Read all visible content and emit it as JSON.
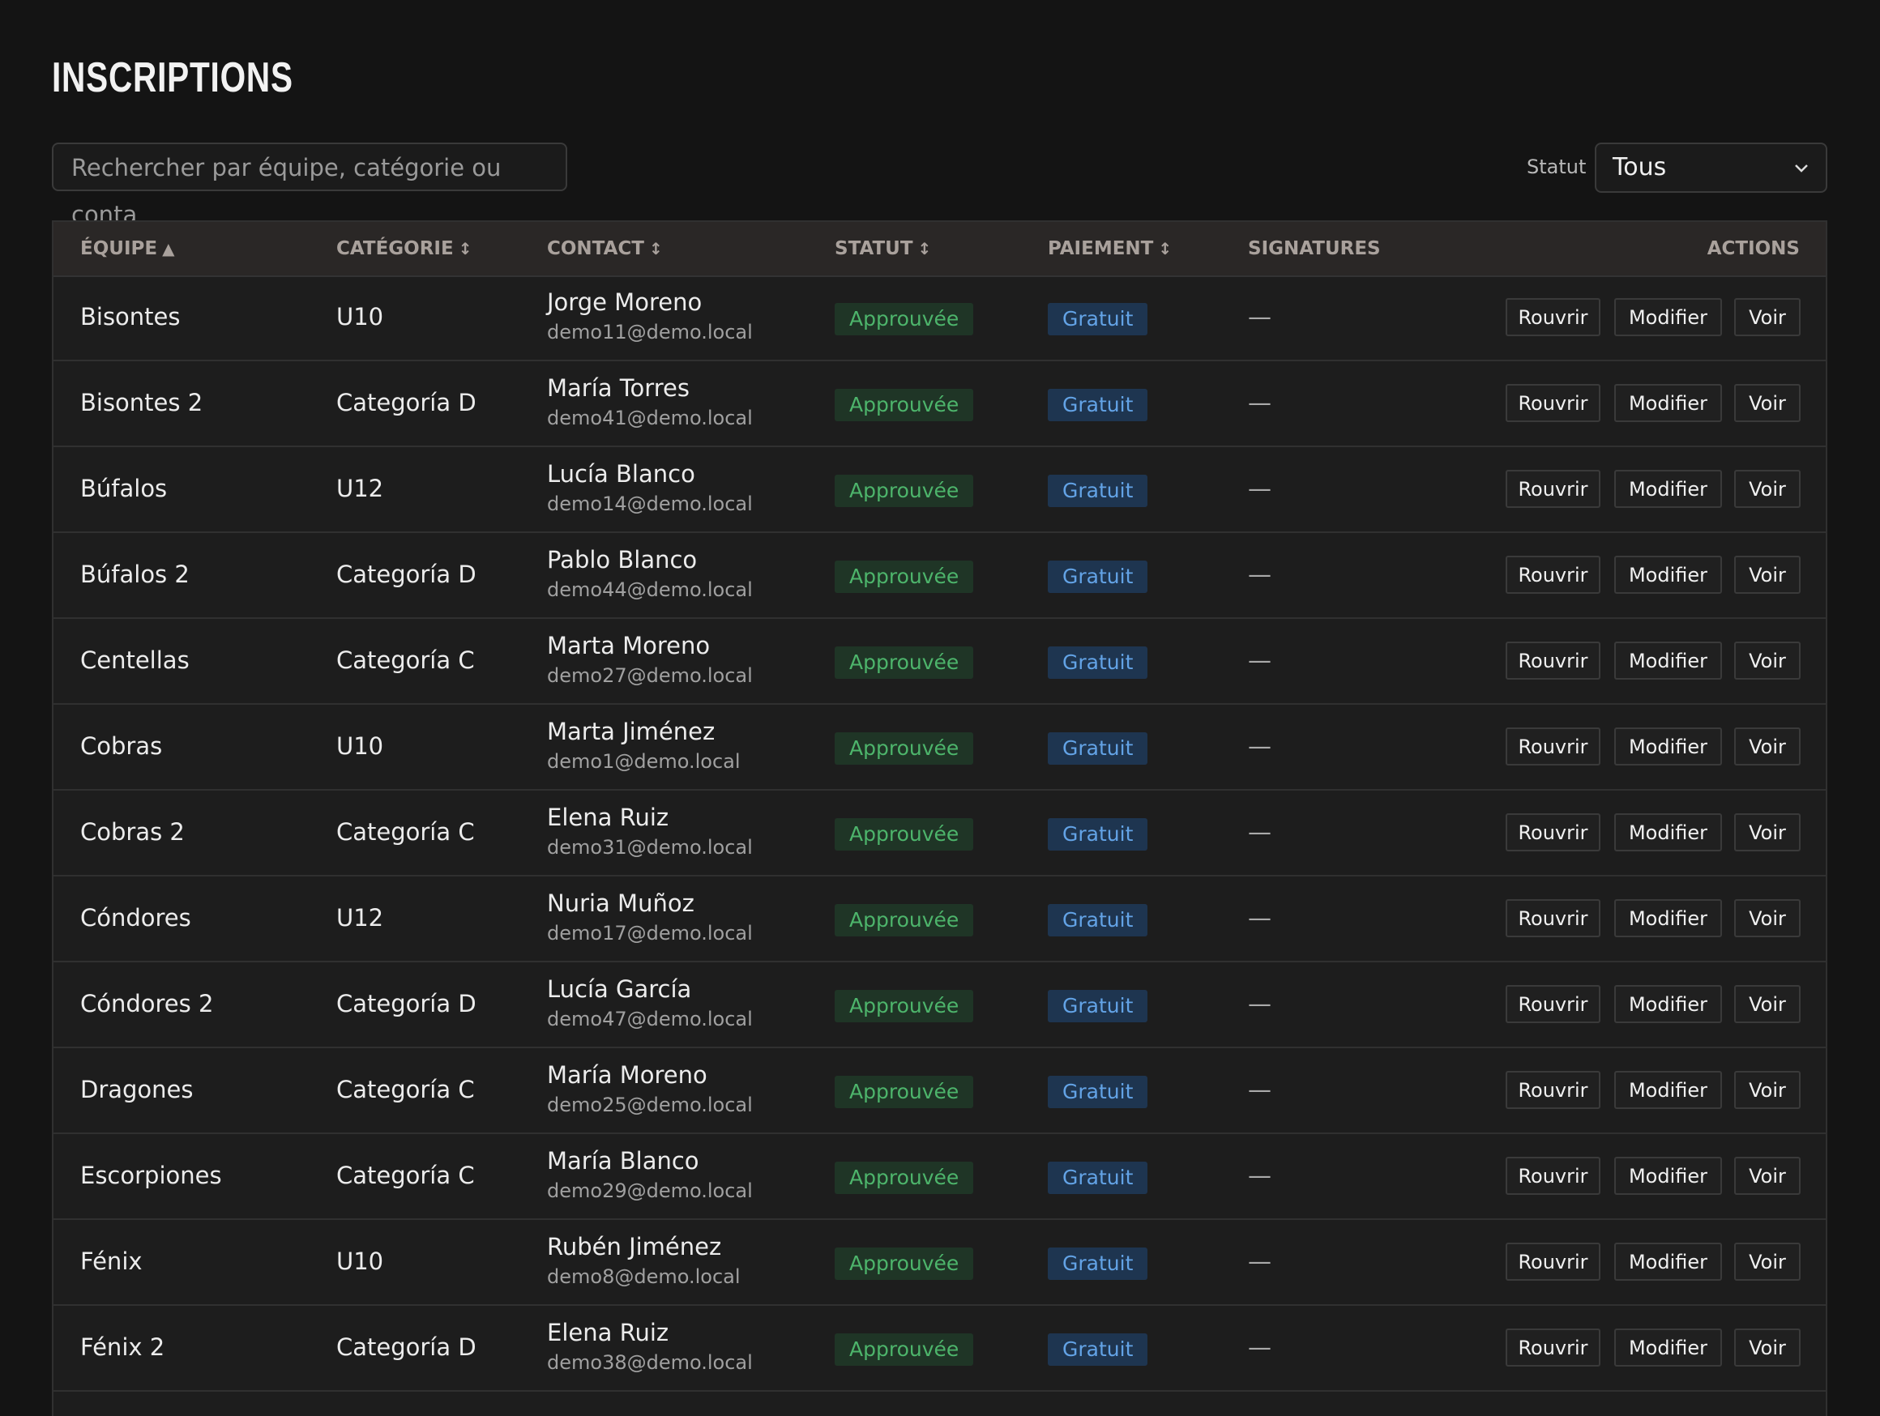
{
  "header": {
    "title": "INSCRIPTIONS"
  },
  "search": {
    "placeholder": "Rechercher par équipe, catégorie ou conta"
  },
  "filter": {
    "label": "Statut",
    "value": "Tous"
  },
  "table": {
    "columns": [
      {
        "label": "ÉQUIPE",
        "sort": "▲"
      },
      {
        "label": "CATÉGORIE",
        "sort": "↕"
      },
      {
        "label": "CONTACT",
        "sort": "↕"
      },
      {
        "label": "STATUT",
        "sort": "↕"
      },
      {
        "label": "PAIEMENT",
        "sort": "↕"
      },
      {
        "label": "SIGNATURES"
      },
      {
        "label": "ACTIONS"
      }
    ],
    "actions": [
      "Rouvrir",
      "Modifier",
      "Voir"
    ],
    "rows": [
      {
        "team": "Bisontes",
        "category": "U10",
        "contact": "Jorge Moreno",
        "email": "demo11@demo.local",
        "status": "Approuvée",
        "payment": "Gratuit",
        "signatures": "—"
      },
      {
        "team": "Bisontes 2",
        "category": "Categoría D",
        "contact": "María Torres",
        "email": "demo41@demo.local",
        "status": "Approuvée",
        "payment": "Gratuit",
        "signatures": "—"
      },
      {
        "team": "Búfalos",
        "category": "U12",
        "contact": "Lucía Blanco",
        "email": "demo14@demo.local",
        "status": "Approuvée",
        "payment": "Gratuit",
        "signatures": "—"
      },
      {
        "team": "Búfalos 2",
        "category": "Categoría D",
        "contact": "Pablo Blanco",
        "email": "demo44@demo.local",
        "status": "Approuvée",
        "payment": "Gratuit",
        "signatures": "—"
      },
      {
        "team": "Centellas",
        "category": "Categoría C",
        "contact": "Marta Moreno",
        "email": "demo27@demo.local",
        "status": "Approuvée",
        "payment": "Gratuit",
        "signatures": "—"
      },
      {
        "team": "Cobras",
        "category": "U10",
        "contact": "Marta Jiménez",
        "email": "demo1@demo.local",
        "status": "Approuvée",
        "payment": "Gratuit",
        "signatures": "—"
      },
      {
        "team": "Cobras 2",
        "category": "Categoría C",
        "contact": "Elena Ruiz",
        "email": "demo31@demo.local",
        "status": "Approuvée",
        "payment": "Gratuit",
        "signatures": "—"
      },
      {
        "team": "Cóndores",
        "category": "U12",
        "contact": "Nuria Muñoz",
        "email": "demo17@demo.local",
        "status": "Approuvée",
        "payment": "Gratuit",
        "signatures": "—"
      },
      {
        "team": "Cóndores 2",
        "category": "Categoría D",
        "contact": "Lucía García",
        "email": "demo47@demo.local",
        "status": "Approuvée",
        "payment": "Gratuit",
        "signatures": "—"
      },
      {
        "team": "Dragones",
        "category": "Categoría C",
        "contact": "María Moreno",
        "email": "demo25@demo.local",
        "status": "Approuvée",
        "payment": "Gratuit",
        "signatures": "—"
      },
      {
        "team": "Escorpiones",
        "category": "Categoría C",
        "contact": "María Blanco",
        "email": "demo29@demo.local",
        "status": "Approuvée",
        "payment": "Gratuit",
        "signatures": "—"
      },
      {
        "team": "Fénix",
        "category": "U10",
        "contact": "Rubén Jiménez",
        "email": "demo8@demo.local",
        "status": "Approuvée",
        "payment": "Gratuit",
        "signatures": "—"
      },
      {
        "team": "Fénix 2",
        "category": "Categoría D",
        "contact": "Elena Ruiz",
        "email": "demo38@demo.local",
        "status": "Approuvée",
        "payment": "Gratuit",
        "signatures": "—"
      }
    ]
  }
}
